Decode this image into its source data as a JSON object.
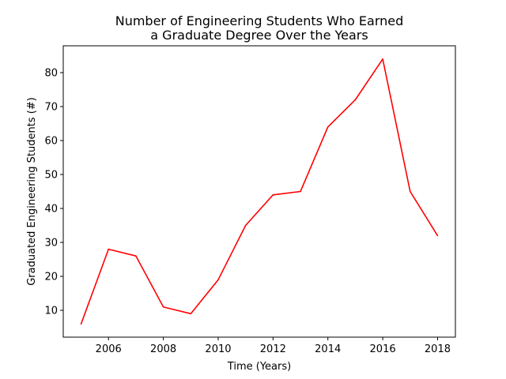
{
  "chart_data": {
    "type": "line",
    "title": [
      "Number of Engineering Students Who Earned",
      "a Graduate Degree Over the Years"
    ],
    "xlabel": "Time (Years)",
    "ylabel": "Graduated Engineering Students (#)",
    "x": [
      2005,
      2006,
      2007,
      2008,
      2009,
      2010,
      2011,
      2012,
      2013,
      2014,
      2015,
      2016,
      2017,
      2018
    ],
    "series": [
      {
        "values": [
          6,
          28,
          26,
          11,
          9,
          19,
          35,
          44,
          45,
          64,
          72,
          84,
          45,
          32
        ],
        "color": "#ff0000"
      }
    ],
    "xlim": [
      2004.35,
      2018.65
    ],
    "ylim": [
      2.1,
      87.9
    ],
    "xticks": [
      2006,
      2008,
      2010,
      2012,
      2014,
      2016,
      2018
    ],
    "yticks": [
      10,
      20,
      30,
      40,
      50,
      60,
      70,
      80
    ],
    "grid": false,
    "legend": "none"
  }
}
